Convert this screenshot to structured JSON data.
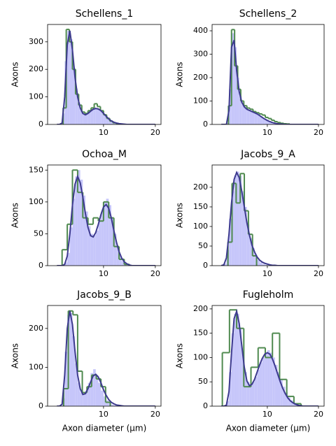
{
  "chart_data": [
    {
      "type": "histogram",
      "title": "Schellens_1",
      "ylabel": "Axons",
      "xlim": [
        -0.8,
        21.1
      ],
      "xticks": [
        10,
        20
      ],
      "ylim": [
        0,
        363
      ],
      "yticks": [
        0,
        100,
        200,
        300
      ],
      "histogram": {
        "color": "#c6c6fa",
        "bins": [
          2,
          2.5,
          3,
          3.5,
          4,
          4.5,
          5,
          5.5,
          6,
          6.5,
          7,
          7.5,
          8,
          8.5,
          9,
          9.5,
          10,
          10.5,
          11,
          11.5,
          12,
          12.5,
          13
        ],
        "counts": [
          40,
          230,
          340,
          310,
          210,
          130,
          80,
          50,
          40,
          38,
          45,
          55,
          62,
          60,
          55,
          45,
          35,
          25,
          16,
          10,
          6,
          3
        ]
      },
      "step_histogram": {
        "color": "#4f8a4f",
        "bins": [
          2.2,
          2.8,
          3.4,
          4.0,
          4.6,
          5.2,
          5.8,
          6.4,
          7.0,
          7.6,
          8.2,
          8.8,
          9.4,
          10.0,
          10.6,
          11.2,
          11.8,
          12.4,
          13.0
        ],
        "counts": [
          60,
          345,
          300,
          200,
          110,
          70,
          45,
          40,
          50,
          60,
          75,
          65,
          50,
          35,
          22,
          12,
          6,
          3
        ]
      },
      "fit": {
        "color": "#3d3a8e",
        "x": [
          1,
          1.5,
          2,
          2.5,
          3,
          3.5,
          4,
          4.5,
          5,
          5.5,
          6,
          6.5,
          7,
          7.5,
          8,
          8.5,
          9,
          9.5,
          10,
          10.5,
          11,
          11.5,
          12,
          12.5,
          13,
          13.5,
          14,
          14.5,
          15,
          15.5,
          16,
          16.5,
          17,
          17.5,
          18,
          18.5,
          19,
          19.5,
          20
        ],
        "values": [
          0,
          0,
          5,
          100,
          290,
          340,
          270,
          170,
          100,
          60,
          40,
          35,
          40,
          48,
          55,
          58,
          56,
          50,
          40,
          30,
          20,
          13,
          8,
          5,
          3,
          2,
          1,
          0,
          0,
          0,
          0,
          0,
          0,
          0,
          0,
          0,
          0,
          0,
          0
        ]
      }
    },
    {
      "type": "histogram",
      "title": "Schellens_2",
      "ylabel": "Axons",
      "xlim": [
        -0.8,
        21.1
      ],
      "xticks": [
        10,
        20
      ],
      "ylim": [
        0,
        427
      ],
      "yticks": [
        0,
        100,
        200,
        300,
        400
      ],
      "histogram": {
        "color": "#c6c6fa",
        "bins": [
          2,
          2.5,
          3,
          3.5,
          4,
          4.5,
          5,
          5.5,
          6,
          6.5,
          7,
          7.5,
          8,
          8.5,
          9,
          9.5,
          10,
          10.5,
          11,
          11.5,
          12,
          12.5,
          13,
          13.5,
          14
        ],
        "counts": [
          5,
          150,
          390,
          330,
          200,
          120,
          85,
          70,
          62,
          58,
          52,
          48,
          42,
          35,
          28,
          22,
          15,
          11,
          8,
          5,
          4,
          3,
          2,
          1
        ]
      },
      "step_histogram": {
        "color": "#4f8a4f",
        "bins": [
          2.4,
          3.0,
          3.6,
          4.2,
          4.8,
          5.4,
          6.0,
          6.6,
          7.2,
          7.8,
          8.4,
          9.0,
          9.6,
          10.2,
          10.8,
          11.4,
          12.0,
          12.6,
          13.2,
          13.8,
          14.4
        ],
        "counts": [
          80,
          405,
          250,
          150,
          100,
          80,
          70,
          65,
          55,
          50,
          45,
          40,
          30,
          25,
          18,
          12,
          8,
          5,
          3,
          2
        ]
      },
      "fit": {
        "color": "#3d3a8e",
        "x": [
          1,
          1.5,
          2,
          2.5,
          3,
          3.5,
          4,
          4.5,
          5,
          5.5,
          6,
          6.5,
          7,
          7.5,
          8,
          8.5,
          9,
          9.5,
          10,
          10.5,
          11,
          11.5,
          12,
          12.5,
          13,
          13.5,
          14,
          14.5,
          15,
          15.5,
          16,
          16.5,
          17,
          17.5,
          18,
          18.5,
          19,
          19.5,
          20
        ],
        "values": [
          0,
          0,
          0,
          60,
          330,
          360,
          230,
          140,
          95,
          75,
          65,
          60,
          55,
          50,
          45,
          38,
          30,
          23,
          17,
          12,
          8,
          5,
          3,
          2,
          1,
          0,
          0,
          0,
          0,
          0,
          0,
          0,
          0,
          0,
          0,
          0,
          0,
          0,
          0
        ]
      }
    },
    {
      "type": "histogram",
      "title": "Ochoa_M",
      "ylabel": "Axons",
      "xlim": [
        -0.8,
        21.1
      ],
      "xticks": [
        10,
        20
      ],
      "ylim": [
        0,
        158
      ],
      "yticks": [
        0,
        50,
        100,
        150
      ],
      "histogram": {
        "color": "#c6c6fa",
        "bins": [
          2.5,
          3,
          3.5,
          4,
          4.5,
          5,
          5.5,
          6,
          6.5,
          7,
          7.5,
          8,
          8.5,
          9,
          9.5,
          10,
          10.5,
          11,
          11.5,
          12,
          12.5,
          13,
          13.5,
          14,
          14.5,
          15
        ],
        "counts": [
          5,
          20,
          60,
          105,
          140,
          150,
          135,
          110,
          85,
          62,
          50,
          48,
          55,
          70,
          85,
          100,
          105,
          95,
          75,
          50,
          30,
          15,
          7,
          3,
          1
        ]
      },
      "step_histogram": {
        "color": "#4f8a4f",
        "bins": [
          2,
          3,
          4,
          5,
          6,
          7,
          8,
          9,
          10,
          11,
          12,
          13,
          14,
          15
        ],
        "counts": [
          25,
          65,
          150,
          115,
          75,
          65,
          75,
          70,
          100,
          75,
          30,
          10,
          2
        ]
      },
      "fit": {
        "color": "#3d3a8e",
        "x": [
          1,
          1.5,
          2,
          2.5,
          3,
          3.5,
          4,
          4.5,
          5,
          5.5,
          6,
          6.5,
          7,
          7.5,
          8,
          8.5,
          9,
          9.5,
          10,
          10.5,
          11,
          11.5,
          12,
          12.5,
          13,
          13.5,
          14,
          14.5,
          15,
          15.5,
          16,
          16.5,
          17,
          17.5,
          18,
          18.5,
          19,
          19.5,
          20
        ],
        "values": [
          0,
          0,
          0,
          2,
          15,
          50,
          95,
          128,
          140,
          130,
          108,
          82,
          60,
          47,
          45,
          52,
          65,
          80,
          92,
          96,
          90,
          75,
          55,
          37,
          22,
          12,
          6,
          3,
          1,
          0,
          0,
          0,
          0,
          0,
          0,
          0,
          0,
          0,
          0
        ]
      }
    },
    {
      "type": "histogram",
      "title": "Jacobs_9_A",
      "ylabel": "Axons",
      "xlim": [
        -0.8,
        21.1
      ],
      "xticks": [
        10,
        20
      ],
      "ylim": [
        0,
        257
      ],
      "yticks": [
        0,
        50,
        100,
        150,
        200
      ],
      "histogram": {
        "color": "#c6c6fa",
        "bins": [
          1.5,
          2,
          2.5,
          3,
          3.5,
          4,
          4.5,
          5,
          5.5,
          6,
          6.5,
          7,
          7.5,
          8,
          8.5,
          9,
          9.5,
          10
        ],
        "counts": [
          5,
          40,
          120,
          190,
          230,
          240,
          230,
          190,
          150,
          105,
          70,
          45,
          28,
          15,
          8,
          4,
          2
        ]
      },
      "step_histogram": {
        "color": "#4f8a4f",
        "bins": [
          2.3,
          3.1,
          3.9,
          4.7,
          5.5,
          6.3,
          7.1,
          7.9
        ],
        "counts": [
          60,
          210,
          160,
          235,
          140,
          80,
          25
        ]
      },
      "fit": {
        "color": "#3d3a8e",
        "x": [
          1,
          1.5,
          2,
          2.5,
          3,
          3.5,
          4,
          4.5,
          5,
          5.5,
          6,
          6.5,
          7,
          7.5,
          8,
          8.5,
          9,
          9.5,
          10,
          10.5,
          11,
          11.5,
          12,
          12.5,
          13,
          13.5,
          14,
          14.5,
          15,
          15.5,
          16,
          16.5,
          17,
          17.5,
          18,
          18.5,
          19,
          19.5,
          20
        ],
        "values": [
          0,
          2,
          20,
          80,
          160,
          220,
          238,
          225,
          190,
          150,
          110,
          78,
          52,
          35,
          22,
          14,
          9,
          6,
          4,
          2,
          1,
          1,
          0,
          0,
          0,
          0,
          0,
          0,
          0,
          0,
          0,
          0,
          0,
          0,
          0,
          0,
          0,
          0,
          0
        ]
      }
    },
    {
      "type": "histogram",
      "title": "Jacobs_9_B",
      "ylabel": "Axons",
      "xlabel": "Axon diameter (µm)",
      "xlim": [
        -0.8,
        21.1
      ],
      "xticks": [
        10,
        20
      ],
      "ylim": [
        0,
        259
      ],
      "yticks": [
        0,
        100,
        200
      ],
      "histogram": {
        "color": "#c6c6fa",
        "bins": [
          2,
          2.5,
          3,
          3.5,
          4,
          4.5,
          5,
          5.5,
          6,
          6.5,
          7,
          7.5,
          8,
          8.5,
          9,
          9.5,
          10,
          10.5,
          11,
          11.5,
          12,
          12.5,
          13
        ],
        "counts": [
          20,
          140,
          235,
          240,
          180,
          110,
          60,
          35,
          30,
          40,
          60,
          85,
          95,
          80,
          60,
          40,
          25,
          15,
          8,
          4,
          2,
          1
        ]
      },
      "step_histogram": {
        "color": "#4f8a4f",
        "bins": [
          2.3,
          3.2,
          4.1,
          5.0,
          5.9,
          6.8,
          7.7,
          8.6,
          9.5,
          10.4,
          11.3
        ],
        "counts": [
          45,
          245,
          235,
          90,
          35,
          50,
          80,
          70,
          50,
          10
        ]
      },
      "fit": {
        "color": "#3d3a8e",
        "x": [
          1,
          1.5,
          2,
          2.5,
          3,
          3.5,
          4,
          4.5,
          5,
          5.5,
          6,
          6.5,
          7,
          7.5,
          8,
          8.5,
          9,
          9.5,
          10,
          10.5,
          11,
          11.5,
          12,
          12.5,
          13,
          13.5,
          14,
          14.5,
          15,
          15.5,
          16,
          16.5,
          17,
          17.5,
          18,
          18.5,
          19,
          19.5,
          20
        ],
        "values": [
          0,
          0,
          5,
          80,
          200,
          245,
          210,
          140,
          80,
          45,
          30,
          32,
          45,
          62,
          78,
          82,
          75,
          60,
          42,
          28,
          17,
          10,
          6,
          3,
          2,
          1,
          0,
          0,
          0,
          0,
          0,
          0,
          0,
          0,
          0,
          0,
          0,
          0,
          0
        ]
      }
    },
    {
      "type": "histogram",
      "title": "Fugleholm",
      "ylabel": "Axons",
      "xlabel": "Axon diameter (µm)",
      "xlim": [
        -0.8,
        21.1
      ],
      "xticks": [
        10,
        20
      ],
      "ylim": [
        0,
        207
      ],
      "yticks": [
        0,
        50,
        100,
        150,
        200
      ],
      "histogram": {
        "color": "#c6c6fa",
        "bins": [
          2,
          2.5,
          3,
          3.5,
          4,
          4.5,
          5,
          5.5,
          6,
          6.5,
          7,
          7.5,
          8,
          8.5,
          9,
          9.5,
          10,
          10.5,
          11,
          11.5,
          12,
          12.5,
          13,
          13.5,
          14,
          14.5,
          15,
          15.5,
          16,
          16.5,
          17
        ],
        "counts": [
          10,
          70,
          150,
          190,
          190,
          160,
          110,
          70,
          50,
          45,
          50,
          60,
          75,
          90,
          100,
          110,
          115,
          110,
          100,
          85,
          70,
          55,
          40,
          28,
          18,
          12,
          7,
          4,
          2,
          1
        ]
      },
      "step_histogram": {
        "color": "#4f8a4f",
        "bins": [
          1.2,
          2.6,
          4.0,
          5.4,
          6.8,
          8.2,
          9.6,
          11.0,
          12.4,
          13.8,
          15.2,
          16.6
        ],
        "counts": [
          110,
          198,
          160,
          40,
          80,
          120,
          100,
          150,
          55,
          20,
          5
        ]
      },
      "fit": {
        "color": "#3d3a8e",
        "x": [
          1,
          1.5,
          2,
          2.5,
          3,
          3.5,
          4,
          4.5,
          5,
          5.5,
          6,
          6.5,
          7,
          7.5,
          8,
          8.5,
          9,
          9.5,
          10,
          10.5,
          11,
          11.5,
          12,
          12.5,
          13,
          13.5,
          14,
          14.5,
          15,
          15.5,
          16,
          16.5,
          17,
          17.5,
          18,
          18.5,
          19,
          19.5,
          20
        ],
        "values": [
          0,
          0,
          2,
          30,
          110,
          180,
          195,
          170,
          125,
          80,
          52,
          42,
          45,
          55,
          70,
          85,
          98,
          107,
          110,
          107,
          97,
          83,
          67,
          51,
          37,
          26,
          17,
          11,
          7,
          4,
          2,
          1,
          0,
          0,
          0,
          0,
          0,
          0,
          0
        ]
      }
    }
  ]
}
